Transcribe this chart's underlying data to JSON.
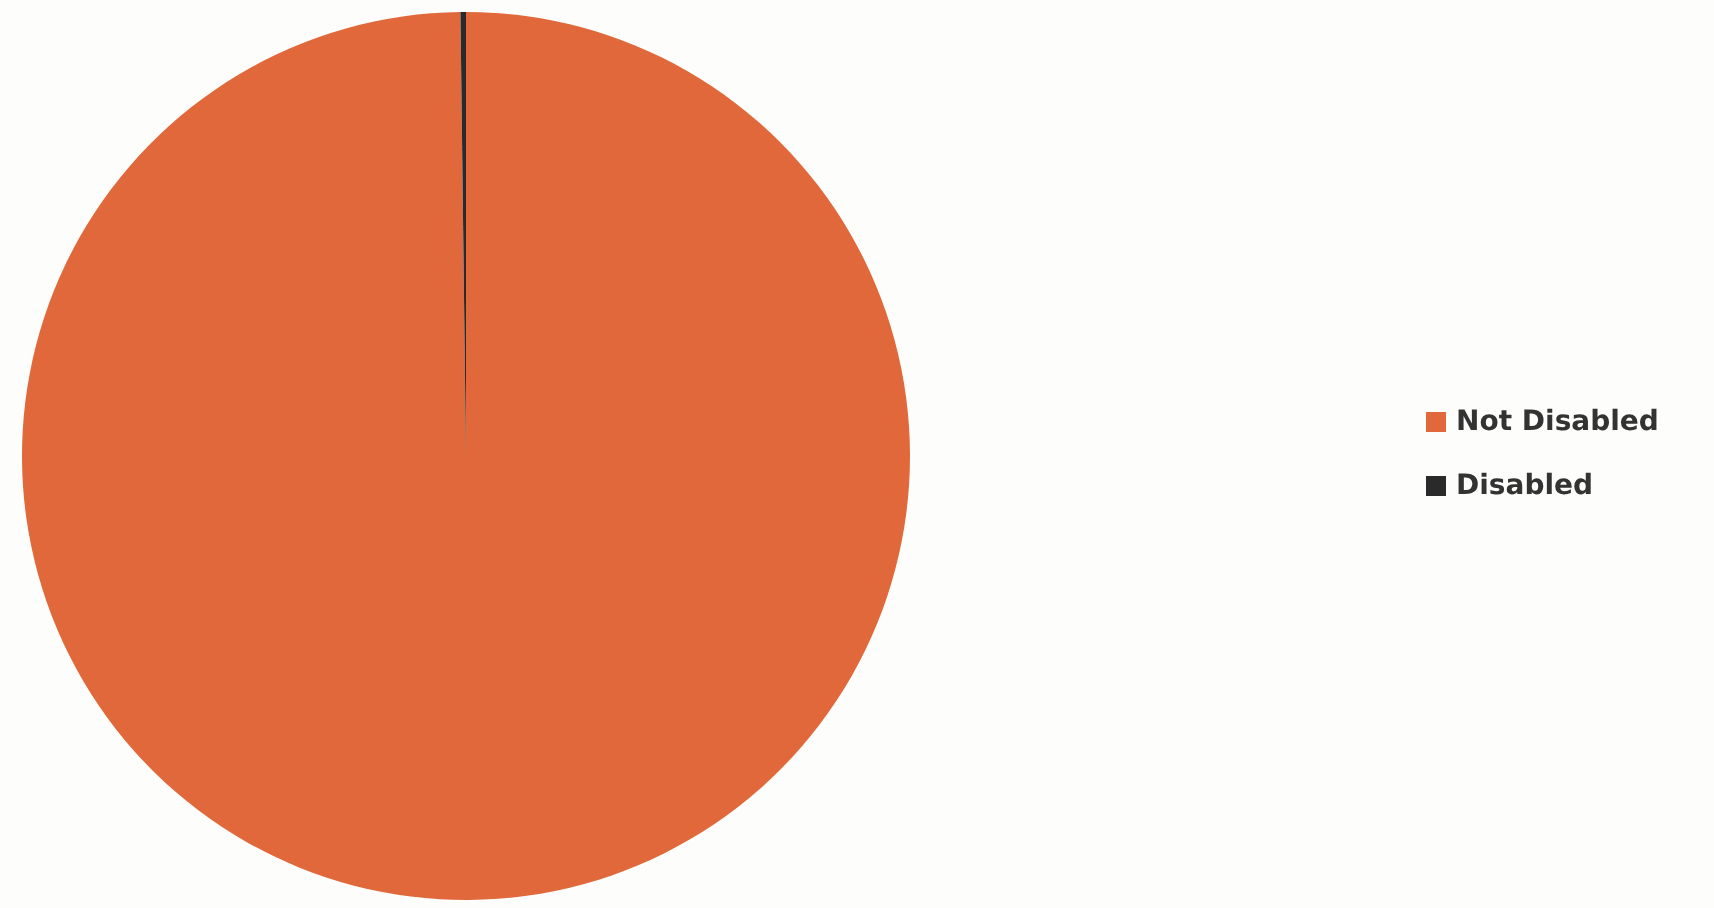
{
  "chart_data": {
    "type": "pie",
    "categories": [
      "Not Disabled",
      "Disabled"
    ],
    "values": [
      99.8,
      0.2
    ],
    "colors": [
      "#e0683a",
      "#2a2a2a"
    ],
    "legend": "right"
  }
}
